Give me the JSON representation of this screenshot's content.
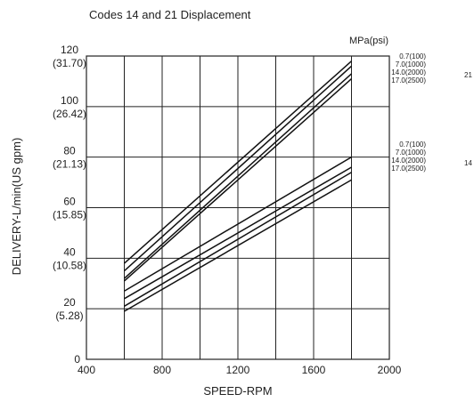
{
  "chart_data": {
    "type": "line",
    "title": "Codes 14 and 21 Displacement",
    "xlabel": "SPEED-RPM",
    "ylabel": "DELIVERY-L/min(US gpm)",
    "pressure_unit": "MPa(psi)",
    "xlim": [
      400,
      2000
    ],
    "ylim": [
      0,
      120
    ],
    "x_ticks": [
      400,
      800,
      1200,
      1600,
      2000
    ],
    "x_tick_labels": [
      "400",
      "800",
      "1200",
      "1600",
      "2000"
    ],
    "y_ticks": [
      0,
      20,
      40,
      60,
      80,
      100,
      120
    ],
    "y_tick_labels": [
      {
        "main": "0",
        "sub": ""
      },
      {
        "main": "20",
        "sub": "(5.28)"
      },
      {
        "main": "40",
        "sub": "(10.58)"
      },
      {
        "main": "60",
        "sub": "(15.85)"
      },
      {
        "main": "80",
        "sub": "(21.13)"
      },
      {
        "main": "100",
        "sub": "(26.42)"
      },
      {
        "main": "120",
        "sub": "(31.70)"
      }
    ],
    "grid": true,
    "groups": [
      {
        "code": "21",
        "series": [
          {
            "name": "0.7(100)",
            "x": [
              600,
              1800
            ],
            "y": [
              38,
              118
            ]
          },
          {
            "name": "7.0(1000)",
            "x": [
              600,
              1800
            ],
            "y": [
              35,
              116
            ]
          },
          {
            "name": "14.0(2000)",
            "x": [
              600,
              1800
            ],
            "y": [
              32,
              113
            ]
          },
          {
            "name": "17.0(2500)",
            "x": [
              600,
              1800
            ],
            "y": [
              31,
              111
            ]
          }
        ]
      },
      {
        "code": "14",
        "series": [
          {
            "name": "0.7(100)",
            "x": [
              600,
              1800
            ],
            "y": [
              27,
              80
            ]
          },
          {
            "name": "7.0(1000)",
            "x": [
              600,
              1800
            ],
            "y": [
              24,
              76
            ]
          },
          {
            "name": "14.0(2000)",
            "x": [
              600,
              1800
            ],
            "y": [
              21,
              74
            ]
          },
          {
            "name": "17.0(2500)",
            "x": [
              600,
              1800
            ],
            "y": [
              19,
              71
            ]
          }
        ]
      }
    ]
  }
}
